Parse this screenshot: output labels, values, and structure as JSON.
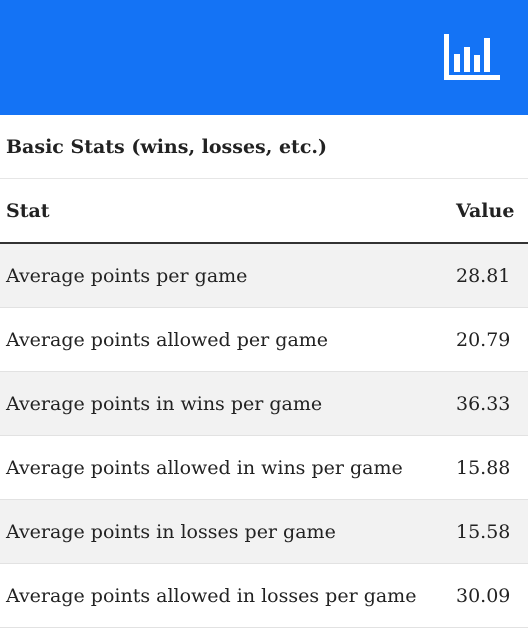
{
  "header": {
    "chart_button_icon": "bar-chart-icon",
    "background_color": "#1473f5"
  },
  "section": {
    "title": "Basic Stats (wins, losses, etc.)"
  },
  "table": {
    "headers": {
      "stat": "Stat",
      "value": "Value"
    },
    "rows": [
      {
        "stat": "Average points per game",
        "value": "28.81"
      },
      {
        "stat": "Average points allowed per game",
        "value": "20.79"
      },
      {
        "stat": "Average points in wins per game",
        "value": "36.33"
      },
      {
        "stat": "Average points allowed in wins per game",
        "value": "15.88"
      },
      {
        "stat": "Average points in losses per game",
        "value": "15.58"
      },
      {
        "stat": "Average points allowed in losses per game",
        "value": "30.09"
      }
    ]
  }
}
